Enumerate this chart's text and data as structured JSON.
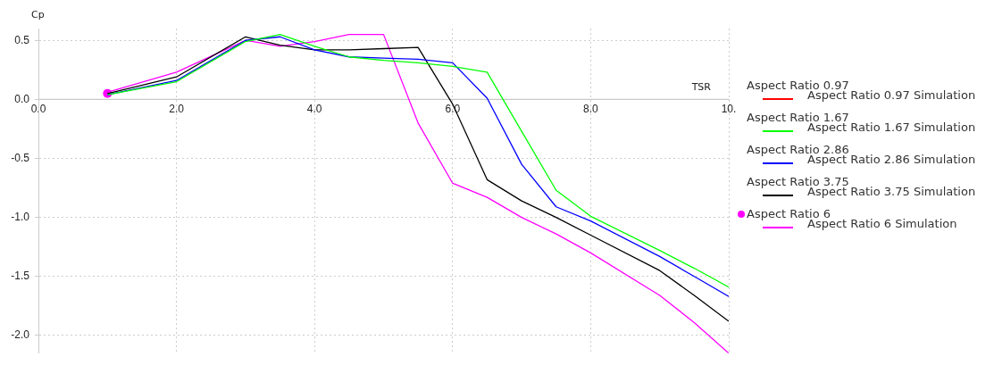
{
  "chart_data": {
    "type": "line",
    "xlabel": "TSR",
    "ylabel": "Cp",
    "x": [
      1,
      2,
      3,
      3.5,
      4,
      4.5,
      5,
      5.5,
      6,
      6.5,
      7,
      7.5,
      8,
      9,
      9.5,
      10
    ],
    "series": [
      {
        "name": "Aspect Ratio 0.97",
        "type": "scatter",
        "values": [
          null,
          null,
          null,
          null,
          null,
          null,
          null,
          null,
          null,
          null,
          null,
          null,
          null,
          null,
          null,
          null
        ]
      },
      {
        "name": "Aspect Ratio 0.97 Simulation",
        "color": "#ff0000",
        "values": [
          null,
          null,
          null,
          null,
          null,
          null,
          null,
          null,
          null,
          null,
          null,
          null,
          null,
          null,
          null,
          null
        ]
      },
      {
        "name": "Aspect Ratio 1.67",
        "type": "scatter",
        "values": [
          null,
          null,
          null,
          null,
          null,
          null,
          null,
          null,
          null,
          null,
          null,
          null,
          null,
          null,
          null,
          null
        ]
      },
      {
        "name": "Aspect Ratio 1.67 Simulation",
        "color": "#00ff00",
        "values": [
          0.04,
          0.15,
          0.49,
          0.55,
          0.45,
          0.36,
          0.33,
          0.31,
          0.28,
          0.23,
          -0.27,
          -0.77,
          -0.99,
          -1.28,
          -1.43,
          -1.59
        ]
      },
      {
        "name": "Aspect Ratio 2.86",
        "type": "scatter",
        "values": [
          null,
          null,
          null,
          null,
          null,
          null,
          null,
          null,
          null,
          null,
          null,
          null,
          null,
          null,
          null,
          null
        ]
      },
      {
        "name": "Aspect Ratio 2.86 Simulation",
        "color": "#0000ff",
        "values": [
          0.04,
          0.16,
          0.5,
          0.53,
          0.42,
          0.36,
          0.35,
          0.34,
          0.31,
          0.01,
          -0.55,
          -0.91,
          -1.03,
          -1.33,
          -1.5,
          -1.67
        ]
      },
      {
        "name": "Aspect Ratio 3.75",
        "type": "scatter",
        "values": [
          null,
          null,
          null,
          null,
          null,
          null,
          null,
          null,
          null,
          null,
          null,
          null,
          null,
          null,
          null,
          null
        ]
      },
      {
        "name": "Aspect Ratio 3.75 Simulation",
        "color": "#000000",
        "values": [
          0.05,
          0.19,
          0.53,
          0.46,
          0.42,
          0.42,
          0.43,
          0.44,
          -0.04,
          -0.68,
          -0.86,
          -1.0,
          -1.15,
          -1.45,
          -1.66,
          -1.88
        ]
      },
      {
        "name": "Aspect Ratio 6",
        "type": "scatter",
        "color": "#ff00ff",
        "values": [
          0.05,
          null,
          null,
          null,
          null,
          null,
          null,
          null,
          null,
          null,
          null,
          null,
          null,
          null,
          null,
          null
        ]
      },
      {
        "name": "Aspect Ratio 6 Simulation",
        "color": "#ff00ff",
        "values": [
          0.06,
          0.23,
          0.5,
          0.45,
          0.49,
          0.55,
          0.55,
          -0.2,
          -0.71,
          -0.83,
          -1.0,
          -1.14,
          -1.3,
          -1.66,
          -1.89,
          -2.15
        ]
      }
    ],
    "xlim": [
      0,
      10
    ],
    "xticks": [
      {
        "value": 0,
        "label": "0.0"
      },
      {
        "value": 2,
        "label": "2.0"
      },
      {
        "value": 4,
        "label": "4.0"
      },
      {
        "value": 6,
        "label": "6.0"
      },
      {
        "value": 8,
        "label": "8.0"
      },
      {
        "value": 10,
        "label": "10."
      }
    ],
    "ylim": [
      -2.15,
      0.6
    ],
    "yticks": [
      {
        "value": 0.5,
        "label": "0.5"
      },
      {
        "value": 0,
        "label": "0.0"
      },
      {
        "value": -0.5,
        "label": "-0.5"
      },
      {
        "value": -1,
        "label": "-1.0"
      },
      {
        "value": -1.5,
        "label": "-1.5"
      },
      {
        "value": -2,
        "label": "-2.0"
      }
    ],
    "grid": true,
    "legend": "right",
    "line_style": "solid"
  }
}
